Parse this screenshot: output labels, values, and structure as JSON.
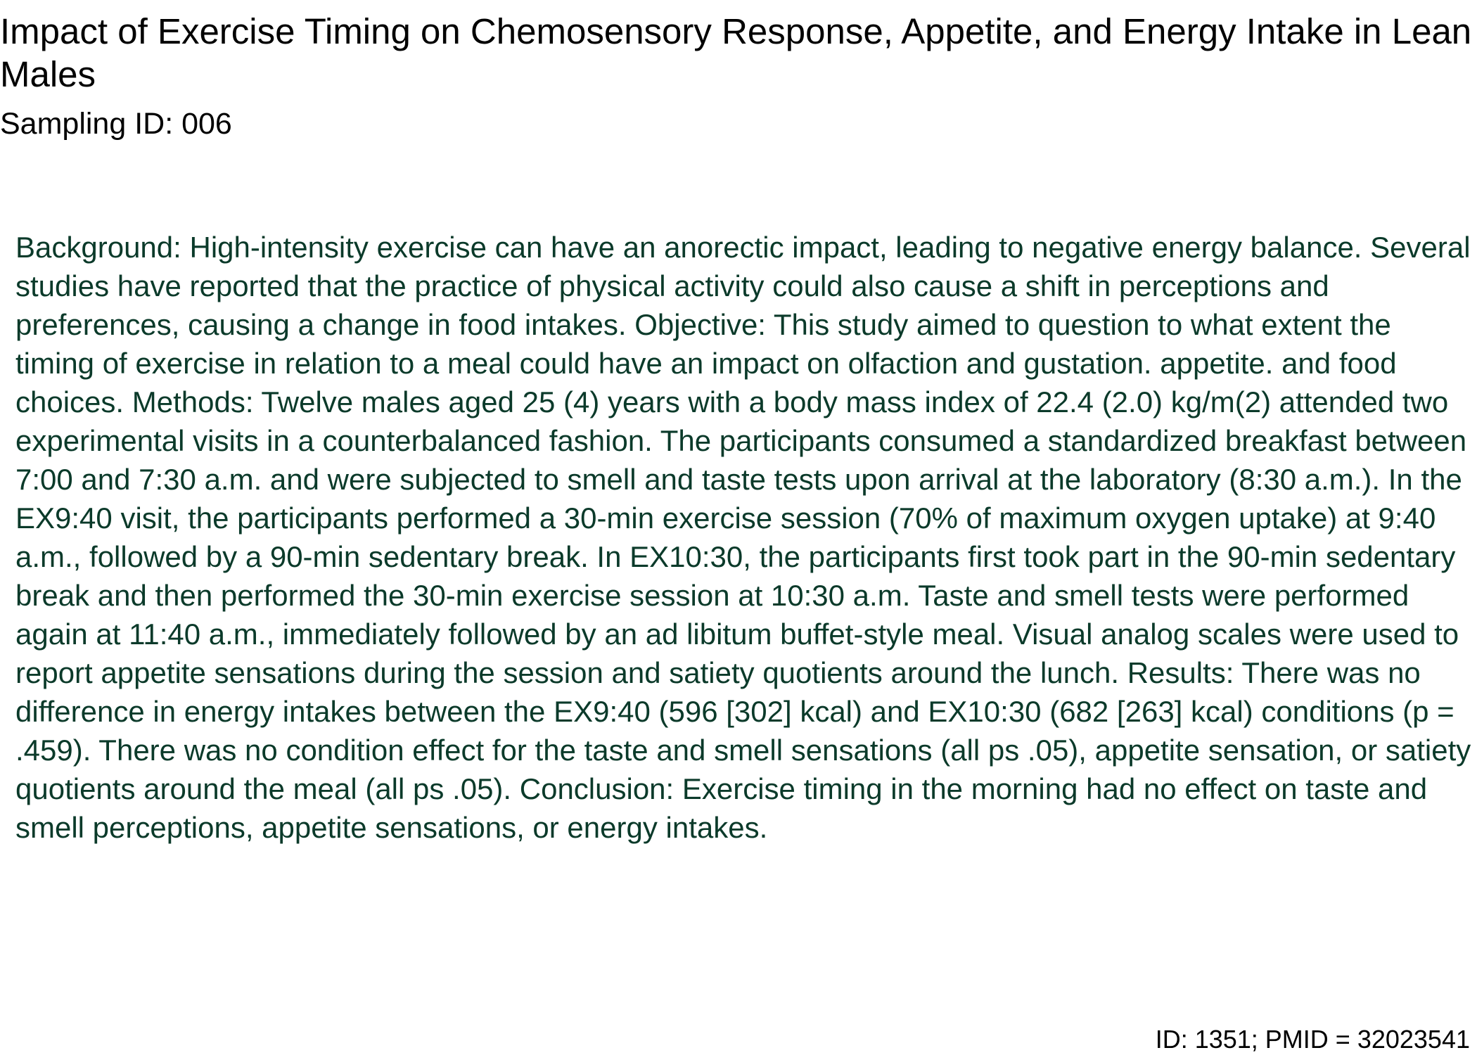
{
  "document": {
    "title": "Impact of Exercise Timing on Chemosensory Response, Appetite, and Energy Intake in Lean Males",
    "sampling_id": "Sampling ID: 006",
    "abstract": "Background: High-intensity exercise can have an anorectic impact, leading to negative energy balance. Several studies have reported that the practice of physical activity could also cause a shift in perceptions and preferences, causing a change in food intakes. Objective: This study aimed to question to what extent the timing of exercise in relation to a meal could have an impact on olfaction and gustation. appetite. and food choices. Methods: Twelve males aged 25 (4) years with a body mass index of 22.4 (2.0) kg/m(2) attended two experimental visits in a counterbalanced fashion. The participants consumed a standardized breakfast between 7:00 and 7:30 a.m. and were subjected to smell and taste tests upon arrival at the laboratory (8:30 a.m.). In the EX9:40 visit, the participants performed a 30-min exercise session (70% of maximum oxygen uptake) at 9:40 a.m., followed by a 90-min sedentary break. In EX10:30, the participants first took part in the 90-min sedentary break and then performed the 30-min exercise session at 10:30 a.m. Taste and smell tests were performed again at 11:40 a.m., immediately followed by an ad libitum buffet-style meal. Visual analog scales were used to report appetite sensations during the session and satiety quotients around the lunch. Results: There was no difference in energy intakes between the EX9:40 (596 [302] kcal) and EX10:30 (682 [263] kcal) conditions (p = .459). There was no condition effect for the taste and smell sensations (all ps .05), appetite sensation, or satiety quotients around the meal (all ps .05). Conclusion: Exercise timing in the morning had no effect on taste and smell perceptions, appetite sensations, or energy intakes.",
    "footer": "ID: 1351; PMID = 32023541"
  },
  "colors": {
    "title_text": "#000000",
    "abstract_text": "#0b3a2a"
  }
}
